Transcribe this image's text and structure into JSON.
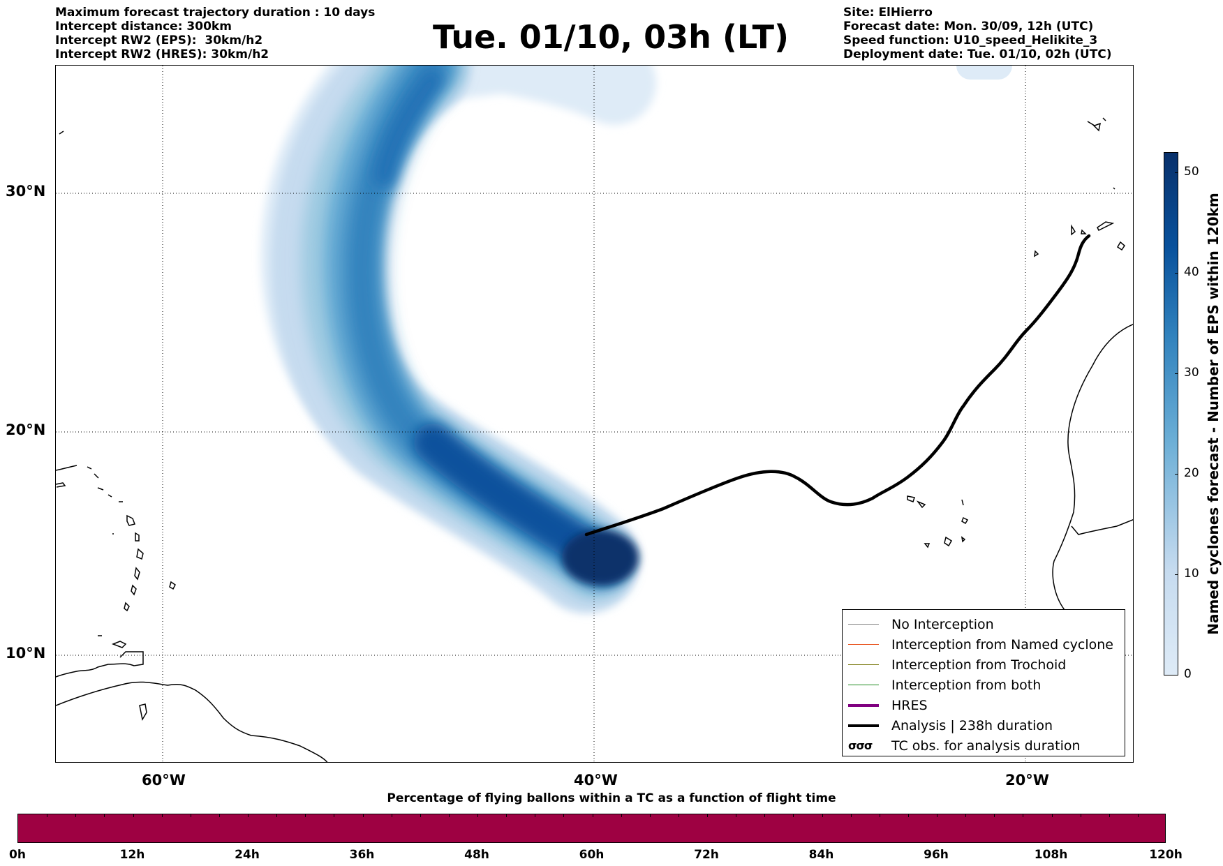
{
  "header_left": [
    "Maximum forecast trajectory duration : 10 days",
    "Intercept distance: 300km",
    "Intercept RW2 (EPS):  30km/h2",
    "Intercept RW2 (HRES): 30km/h2"
  ],
  "header_right": [
    "Site: ElHierro",
    "Forecast date: Mon. 30/09, 12h (UTC)",
    "Speed function: U10_speed_Helikite_3",
    "Deployment date: Tue. 01/10, 02h (UTC)"
  ],
  "title": "Tue. 01/10, 03h (LT)",
  "map": {
    "lat_ticks": [
      "30°N",
      "20°N",
      "10°N"
    ],
    "lon_ticks": [
      "60°W",
      "40°W",
      "20°W"
    ],
    "colors": {
      "analysis_track": "#000000",
      "gridline": "#000000",
      "coast": "#000000"
    }
  },
  "legend": {
    "items": [
      {
        "label": "No Interception",
        "color": "#808080",
        "style": "thin-line"
      },
      {
        "label": "Interception from Named cyclone",
        "color": "#e8501a",
        "style": "thin-line"
      },
      {
        "label": "Interception from Trochoid",
        "color": "#7a7a10",
        "style": "thin-line"
      },
      {
        "label": "Interception from both",
        "color": "#1f8a1f",
        "style": "thin-line"
      },
      {
        "label": "HRES",
        "color": "#800080",
        "style": "thick-line"
      },
      {
        "label": "Analysis | 238h duration",
        "color": "#000000",
        "style": "thick-line"
      },
      {
        "label": "TC obs. for analysis duration",
        "color": "#000000",
        "style": "symbol",
        "symbol": "σσσ"
      }
    ]
  },
  "colorbar": {
    "label": "Named cyclones forecast - Number of EPS within 120km",
    "ticks": [
      "0",
      "10",
      "20",
      "30",
      "40",
      "50"
    ],
    "min": 0,
    "max": 52,
    "color_low": "#deebf7",
    "color_high": "#08306b"
  },
  "flight_bar": {
    "caption": "Percentage of flying ballons within a TC as a function of flight time",
    "ticks": [
      "0h",
      "12h",
      "24h",
      "36h",
      "48h",
      "60h",
      "72h",
      "84h",
      "96h",
      "108h",
      "120h"
    ],
    "color": "#9e0142"
  }
}
